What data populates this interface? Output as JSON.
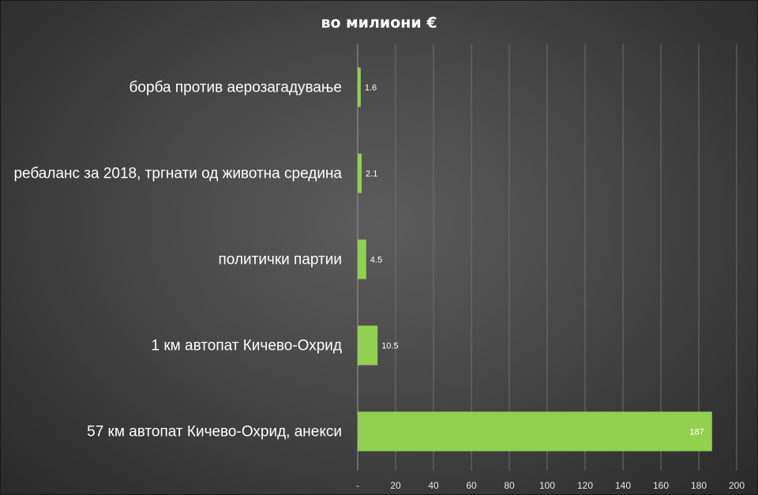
{
  "chart_data": {
    "type": "bar",
    "orientation": "horizontal",
    "title": "во милиони €",
    "categories": [
      "борба против аерозагадување",
      "ребаланс за 2018, тргнати од животна средина",
      "политички партии",
      "1 км автопат Кичево-Охрид",
      "57 км автопат Кичево-Охрид, анекси"
    ],
    "values": [
      1.6,
      2.1,
      4.5,
      10.5,
      187
    ],
    "data_labels": [
      "1.6",
      "2.1",
      "4.5",
      "10.5",
      "187"
    ],
    "xlim": [
      0,
      200
    ],
    "x_ticks": [
      0,
      20,
      40,
      60,
      80,
      100,
      120,
      140,
      160,
      180,
      200
    ],
    "x_tick_labels": [
      "-",
      "20",
      "40",
      "60",
      "80",
      "100",
      "120",
      "140",
      "160",
      "180",
      "200"
    ],
    "xlabel": "",
    "ylabel": "",
    "grid": true,
    "legend": "none",
    "colors": {
      "bar": "#92d050",
      "background": "#4a4a4a",
      "text": "#ffffff",
      "grid": "#6e6e6e"
    }
  }
}
